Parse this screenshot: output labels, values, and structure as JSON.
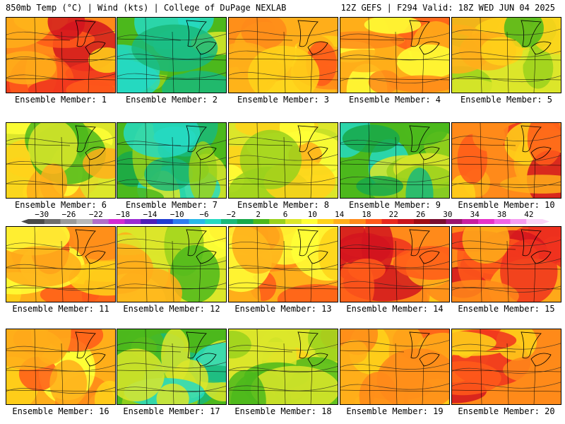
{
  "header": {
    "left": "850mb Temp (°C) | Wind (kts) | College of DuPage NEXLAB",
    "right": "12Z GEFS | F294 Valid: 18Z WED JUN 04 2025"
  },
  "colorbar": {
    "labels": [
      "-30",
      "-26",
      "-22",
      "-18",
      "-14",
      "-10",
      "-6",
      "-2",
      "2",
      "6",
      "10",
      "14",
      "18",
      "22",
      "26",
      "30",
      "34",
      "38",
      "42"
    ],
    "colors": [
      "#4a4a4a",
      "#6e6e6e",
      "#9a9a9a",
      "#b8b8b8",
      "#b06ec8",
      "#d22bd2",
      "#9a2bd2",
      "#4d1fb8",
      "#1f3cd2",
      "#2e7cf0",
      "#29b8e8",
      "#26d9c2",
      "#1ab87a",
      "#17a84a",
      "#4cb81c",
      "#9ad11c",
      "#dce62a",
      "#ffff36",
      "#ffd21a",
      "#ffae1a",
      "#ff8a1a",
      "#ff5a1a",
      "#e8281e",
      "#c8141e",
      "#a00c14",
      "#7a0c30",
      "#9a146e",
      "#c81ea0",
      "#e632c8",
      "#f064e6",
      "#f59cf0",
      "#fbd4f8"
    ]
  },
  "members": [
    {
      "label": "Ensemble Member: 1",
      "scheme": "hot"
    },
    {
      "label": "Ensemble Member: 2",
      "scheme": "cool"
    },
    {
      "label": "Ensemble Member: 3",
      "scheme": "warm"
    },
    {
      "label": "Ensemble Member: 4",
      "scheme": "warm"
    },
    {
      "label": "Ensemble Member: 5",
      "scheme": "mixed"
    },
    {
      "label": "Ensemble Member: 6",
      "scheme": "mixed"
    },
    {
      "label": "Ensemble Member: 7",
      "scheme": "cool"
    },
    {
      "label": "Ensemble Member: 8",
      "scheme": "mixed"
    },
    {
      "label": "Ensemble Member: 9",
      "scheme": "cool"
    },
    {
      "label": "Ensemble Member: 10",
      "scheme": "hot"
    },
    {
      "label": "Ensemble Member: 11",
      "scheme": "warm"
    },
    {
      "label": "Ensemble Member: 12",
      "scheme": "mixed"
    },
    {
      "label": "Ensemble Member: 13",
      "scheme": "warm"
    },
    {
      "label": "Ensemble Member: 14",
      "scheme": "hot"
    },
    {
      "label": "Ensemble Member: 15",
      "scheme": "hot"
    },
    {
      "label": "Ensemble Member: 16",
      "scheme": "warm"
    },
    {
      "label": "Ensemble Member: 17",
      "scheme": "cool"
    },
    {
      "label": "Ensemble Member: 18",
      "scheme": "mixed"
    },
    {
      "label": "Ensemble Member: 19",
      "scheme": "warm"
    },
    {
      "label": "Ensemble Member: 20",
      "scheme": "hot"
    }
  ]
}
